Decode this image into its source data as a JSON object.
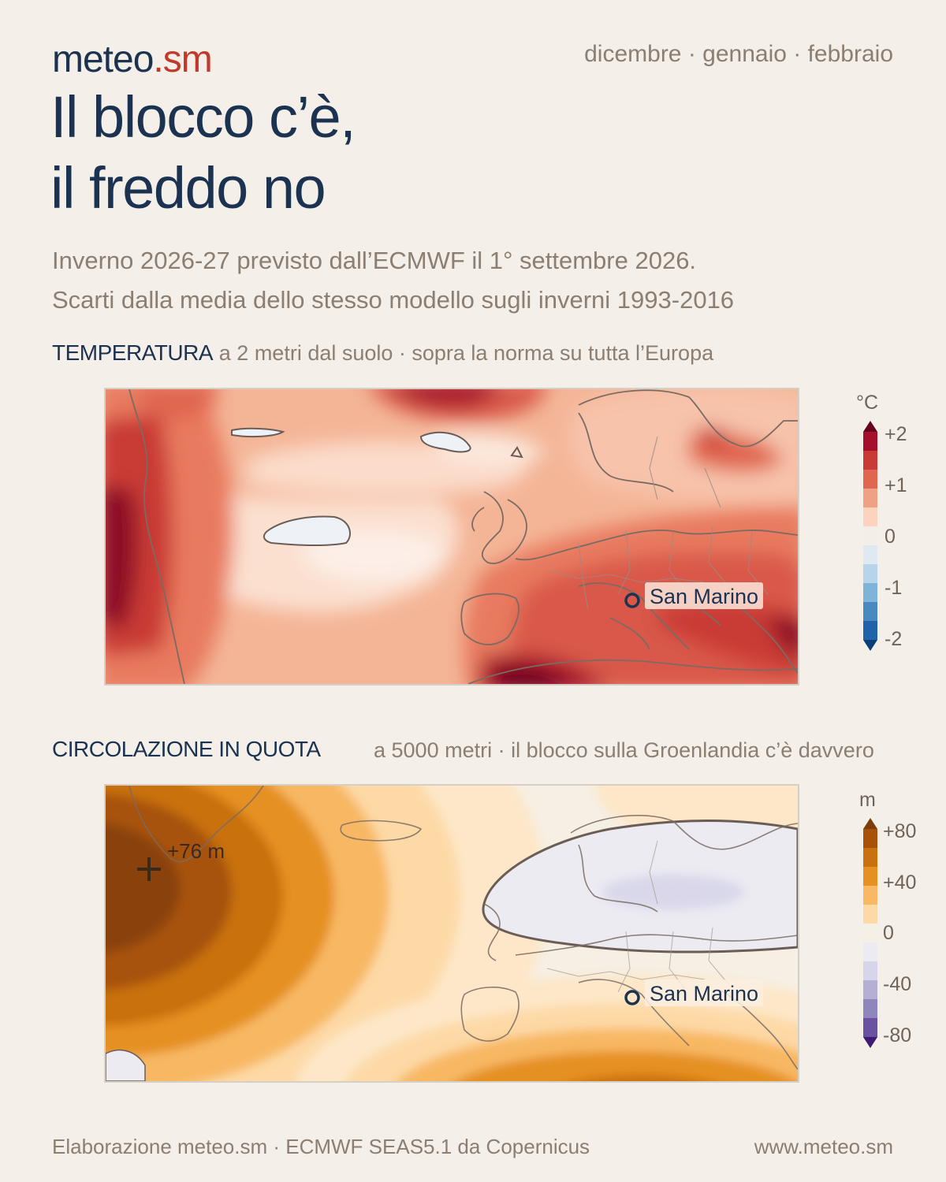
{
  "header": {
    "brand_main": "meteo",
    "brand_suffix": ".sm",
    "months": "dicembre · gennaio · febbraio",
    "title_line1": "Il blocco c’è,",
    "title_line2": "il freddo no",
    "subtitle_line1": "Inverno 2026-27 previsto dall’ECMWF il 1° settembre 2026.",
    "subtitle_line2": "Scarti dalla media dello stesso modello sugli inverni 1993-2016"
  },
  "temperature_map": {
    "heading": "TEMPERATURA",
    "description": "a 2 metri dal suolo · sopra la norma su tutta l’Europa",
    "city_label": "San Marino",
    "legend": {
      "unit": "°C",
      "labels": [
        "+2",
        "+1",
        "0",
        "-1",
        "-2"
      ],
      "colors": [
        "#67001f",
        "#a50f2a",
        "#c93a36",
        "#e0664f",
        "#efa185",
        "#fbd3be",
        "#f4ede8",
        "#dfe9f2",
        "#b7d4ea",
        "#7fb3d8",
        "#4a89bf",
        "#2063a8",
        "#0b3e77"
      ]
    }
  },
  "geopotential_map": {
    "heading": "CIRCOLAZIONE IN QUOTA",
    "description": "a 5000 metri · il blocco sulla Groenlandia c’è davvero",
    "city_label": "San Marino",
    "max_label": "+76 m",
    "legend": {
      "unit": "m",
      "labels": [
        "+80",
        "+40",
        "0",
        "-40",
        "-80"
      ],
      "colors": [
        "#7f3b08",
        "#a75208",
        "#c8710e",
        "#e59022",
        "#f8b864",
        "#fdd9a6",
        "#f6efe4",
        "#ecebf2",
        "#d7d5e9",
        "#b4afd3",
        "#8f86bd",
        "#6a52a0",
        "#3f1a72"
      ]
    }
  },
  "footer": {
    "source": "Elaborazione meteo.sm · ECMWF SEAS5.1 da Copernicus",
    "url": "www.meteo.sm"
  }
}
